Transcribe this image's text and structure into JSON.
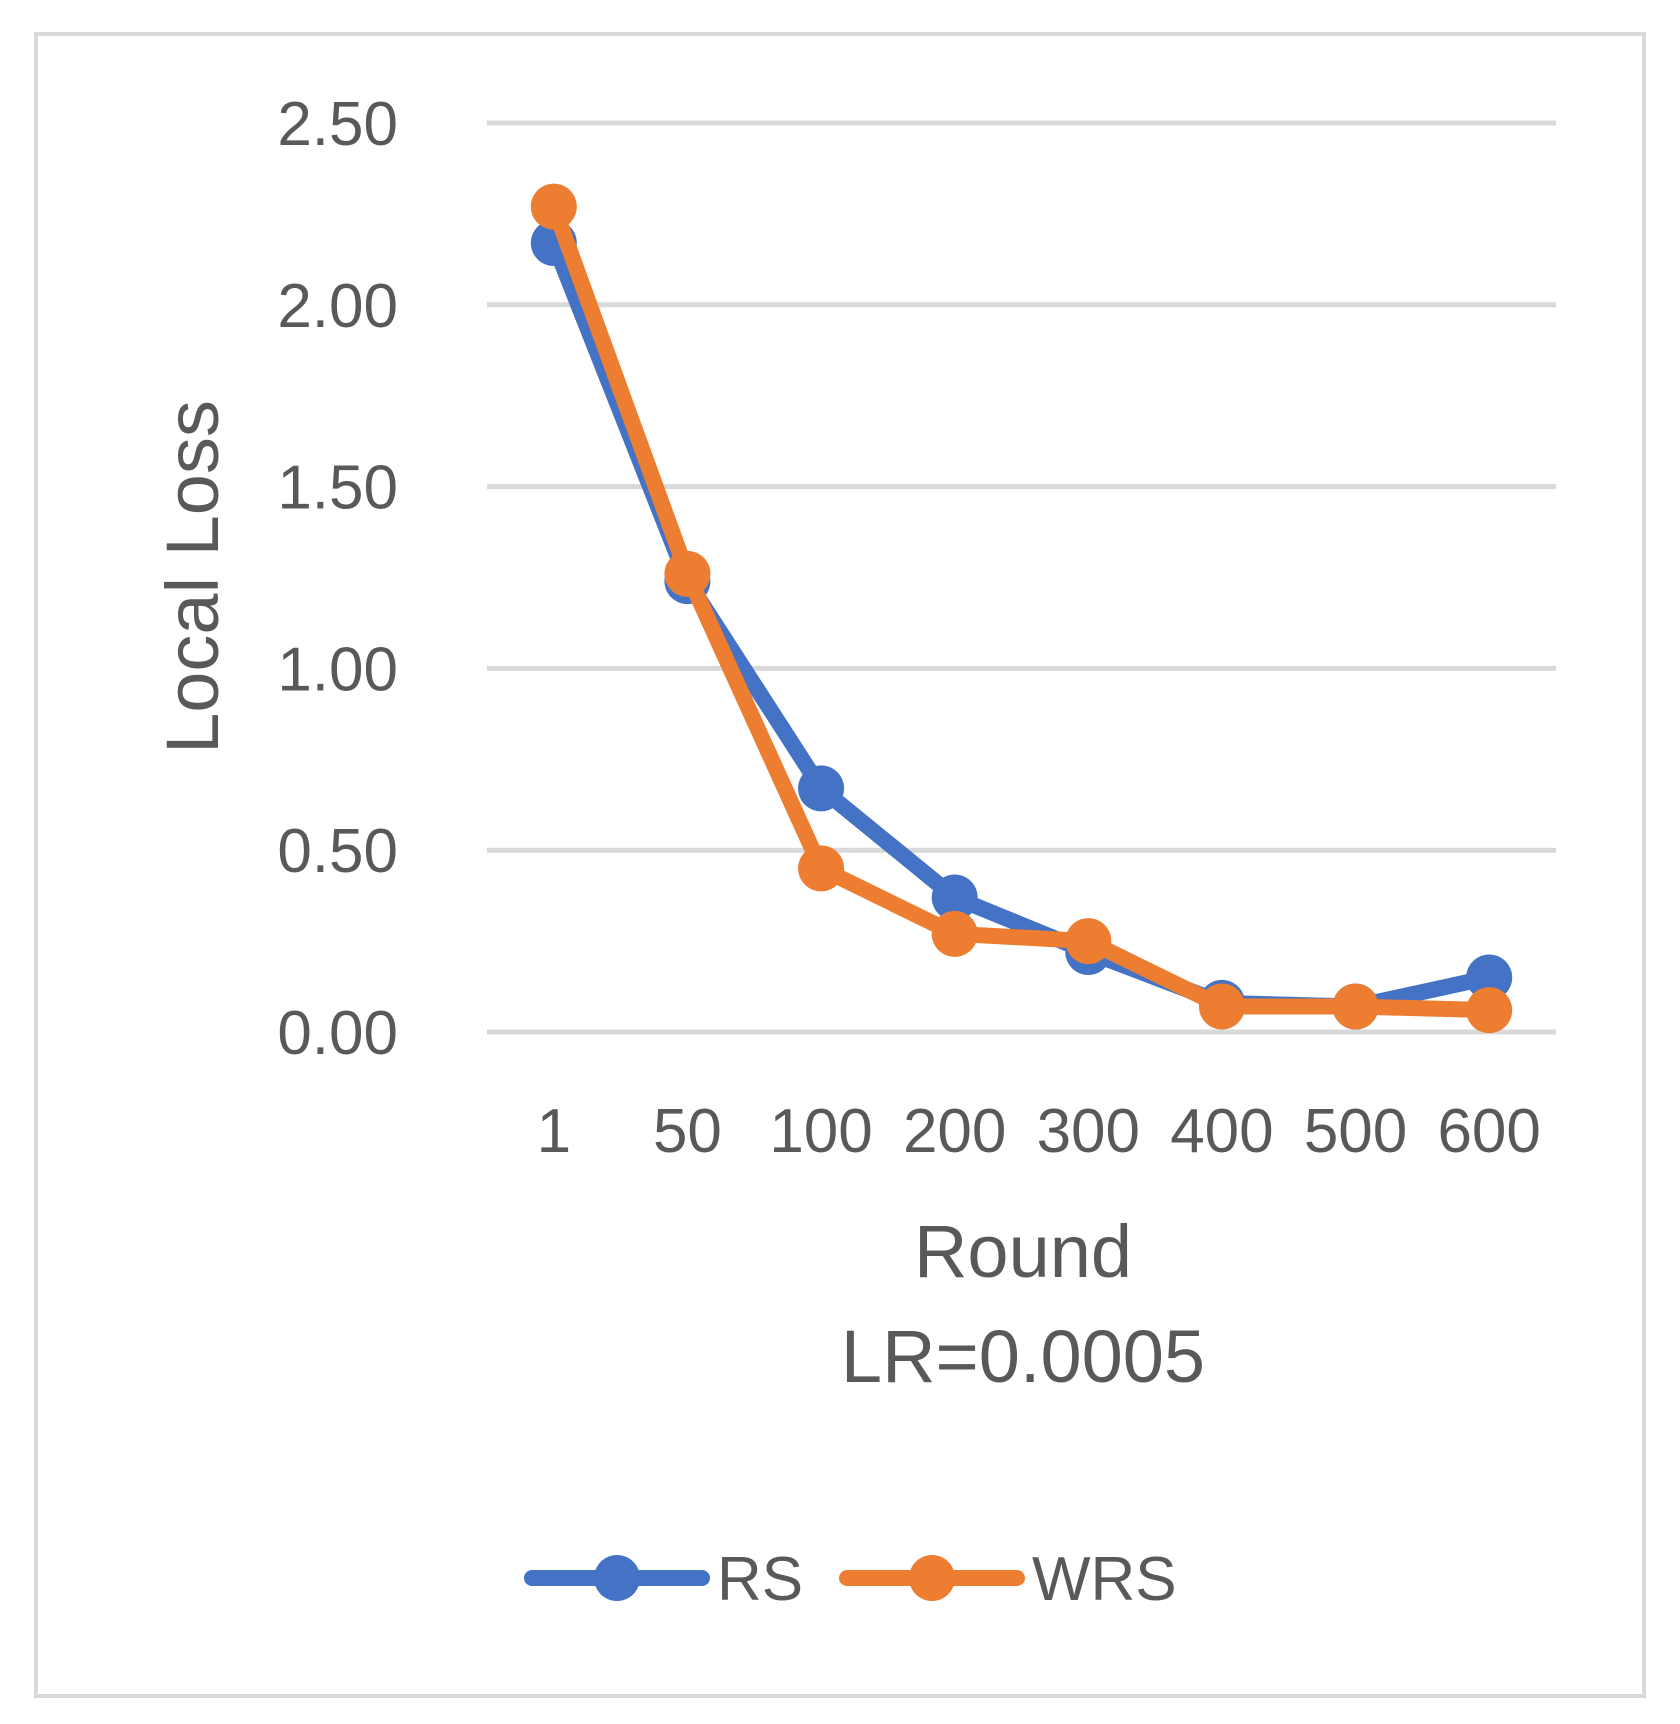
{
  "chart_data": {
    "type": "line",
    "title": "",
    "xlabel": "Round",
    "subtitle": "LR=0.0005",
    "ylabel": "Local Loss",
    "categories": [
      "1",
      "50",
      "100",
      "200",
      "300",
      "400",
      "500",
      "600"
    ],
    "ylim": [
      0,
      2.5
    ],
    "yticks": [
      "0.00",
      "0.50",
      "1.00",
      "1.50",
      "2.00",
      "2.50"
    ],
    "yticks_values": [
      0,
      0.5,
      1.0,
      1.5,
      2.0,
      2.5
    ],
    "grid": true,
    "legend_position": "bottom",
    "series": [
      {
        "name": "RS",
        "color": "#4472c4",
        "values": [
          2.17,
          1.24,
          0.67,
          0.37,
          0.22,
          0.08,
          0.07,
          0.15
        ]
      },
      {
        "name": "WRS",
        "color": "#ed7d31",
        "values": [
          2.27,
          1.26,
          0.45,
          0.27,
          0.25,
          0.07,
          0.07,
          0.06
        ]
      }
    ]
  }
}
